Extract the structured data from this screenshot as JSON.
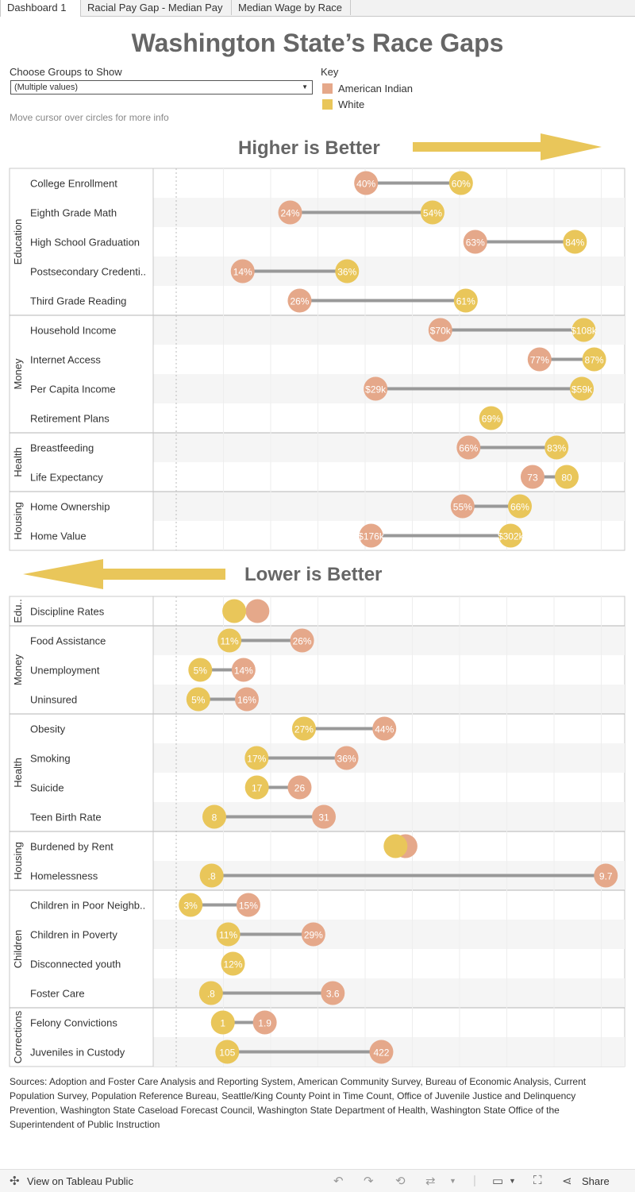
{
  "tabs": [
    {
      "label": "Dashboard 1"
    },
    {
      "label": "Racial Pay Gap - Median Pay"
    },
    {
      "label": "Median Wage by Race"
    }
  ],
  "title": "Washington State’s Race Gaps",
  "filter": {
    "label": "Choose Groups to Show",
    "value": "(Multiple values)"
  },
  "key": {
    "label": "Key",
    "items": [
      {
        "name": "American Indian",
        "color": "#e5a88a"
      },
      {
        "name": "White",
        "color": "#e9c65a"
      }
    ]
  },
  "hint": "Move cursor over circles for more info",
  "chart_data": [
    {
      "type": "dumbbell",
      "title": "Higher is Better",
      "series": [
        {
          "name": "American Indian"
        },
        {
          "name": "White"
        }
      ],
      "groups": [
        {
          "name": "Education",
          "rows": [
            {
              "label": "College Enrollment",
              "ai": 40,
              "white": 60,
              "ai_label": "40%",
              "white_label": "60%"
            },
            {
              "label": "Eighth Grade Math",
              "ai": 24,
              "white": 54,
              "ai_label": "24%",
              "white_label": "54%"
            },
            {
              "label": "High School Graduation",
              "ai": 63,
              "white": 84,
              "ai_label": "63%",
              "white_label": "84%"
            },
            {
              "label": "Postsecondary Credenti..",
              "ai": 14,
              "white": 36,
              "ai_label": "14%",
              "white_label": "36%"
            },
            {
              "label": "Third Grade Reading",
              "ai": 26,
              "white": 61,
              "ai_label": "26%",
              "white_label": "61%"
            }
          ]
        },
        {
          "name": "Money",
          "rows": [
            {
              "label": "Household Income",
              "ai": 70,
              "white": 108,
              "ai_label": "$70k",
              "white_label": "$108k"
            },
            {
              "label": "Internet Access",
              "ai": 77,
              "white": 87,
              "ai_label": "77%",
              "white_label": "87%"
            },
            {
              "label": "Per Capita Income",
              "ai": 29,
              "white": 59,
              "ai_label": "$29k",
              "white_label": "$59k"
            },
            {
              "label": "Retirement Plans",
              "ai": null,
              "white": 69,
              "ai_label": "",
              "white_label": "69%"
            }
          ]
        },
        {
          "name": "Health",
          "rows": [
            {
              "label": "Breastfeeding",
              "ai": 66,
              "white": 83,
              "ai_label": "66%",
              "white_label": "83%"
            },
            {
              "label": "Life Expectancy",
              "ai": 73,
              "white": 80,
              "ai_label": "73",
              "white_label": "80"
            }
          ]
        },
        {
          "name": "Housing",
          "rows": [
            {
              "label": "Home Ownership",
              "ai": 55,
              "white": 66,
              "ai_label": "55%",
              "white_label": "66%"
            },
            {
              "label": "Home Value",
              "ai": 176,
              "white": 302,
              "ai_label": "$176k",
              "white_label": "$302k"
            }
          ]
        }
      ]
    },
    {
      "type": "dumbbell",
      "title": "Lower is Better",
      "series": [
        {
          "name": "American Indian"
        },
        {
          "name": "White"
        }
      ],
      "groups": [
        {
          "name": "Edu..",
          "rows": [
            {
              "label": "Discipline Rates",
              "ai": 0.07,
              "white": 0.05,
              "ai_label": "",
              "white_label": ""
            }
          ]
        },
        {
          "name": "Money",
          "rows": [
            {
              "label": "Food Assistance",
              "ai": 26,
              "white": 11,
              "ai_label": "26%",
              "white_label": "11%"
            },
            {
              "label": "Unemployment",
              "ai": 14,
              "white": 5,
              "ai_label": "14%",
              "white_label": "5%"
            },
            {
              "label": "Uninsured",
              "ai": 16,
              "white": 5,
              "ai_label": "16%",
              "white_label": "5%"
            }
          ]
        },
        {
          "name": "Health",
          "rows": [
            {
              "label": "Obesity",
              "ai": 44,
              "white": 27,
              "ai_label": "44%",
              "white_label": "27%"
            },
            {
              "label": "Smoking",
              "ai": 36,
              "white": 17,
              "ai_label": "36%",
              "white_label": "17%"
            },
            {
              "label": "Suicide",
              "ai": 26,
              "white": 17,
              "ai_label": "26",
              "white_label": "17"
            },
            {
              "label": "Teen Birth Rate",
              "ai": 31,
              "white": 8,
              "ai_label": "31",
              "white_label": "8"
            }
          ]
        },
        {
          "name": "Housing",
          "rows": [
            {
              "label": "Burdened by Rent",
              "ai": 46,
              "white": 44,
              "ai_label": "",
              "white_label": ""
            },
            {
              "label": "Homelessness",
              "ai": 9.7,
              "white": 0.8,
              "ai_label": "9.7",
              "white_label": ".8"
            }
          ]
        },
        {
          "name": "Children",
          "rows": [
            {
              "label": "Children in Poor Neighb..",
              "ai": 15,
              "white": 3,
              "ai_label": "15%",
              "white_label": "3%"
            },
            {
              "label": "Children in Poverty",
              "ai": 29,
              "white": 11,
              "ai_label": "29%",
              "white_label": "11%"
            },
            {
              "label": "Disconnected youth",
              "ai": null,
              "white": 12,
              "ai_label": "",
              "white_label": "12%"
            },
            {
              "label": "Foster Care",
              "ai": 3.6,
              "white": 0.8,
              "ai_label": "3.6",
              "white_label": ".8"
            }
          ]
        },
        {
          "name": "Corrections",
          "rows": [
            {
              "label": "Felony Convictions",
              "ai": 1.9,
              "white": 1,
              "ai_label": "1.9",
              "white_label": "1"
            },
            {
              "label": "Juveniles in Custody",
              "ai": 422,
              "white": 105,
              "ai_label": "422",
              "white_label": "105"
            }
          ]
        }
      ]
    }
  ],
  "sources": "Sources: Adoption and Foster Care Analysis and Reporting System, American Community Survey, Bureau of Economic Analysis, Current Population Survey, Population Reference Bureau, Seattle/King County Point in Time Count, Office of Juvenile Justice and Delinquency Prevention, Washington State Caseload Forecast Council, Washington State Department of Health, Washington State Office of the Superintendent of Public Instruction",
  "footer": {
    "view_label": "View on Tableau Public",
    "share_label": "Share"
  }
}
